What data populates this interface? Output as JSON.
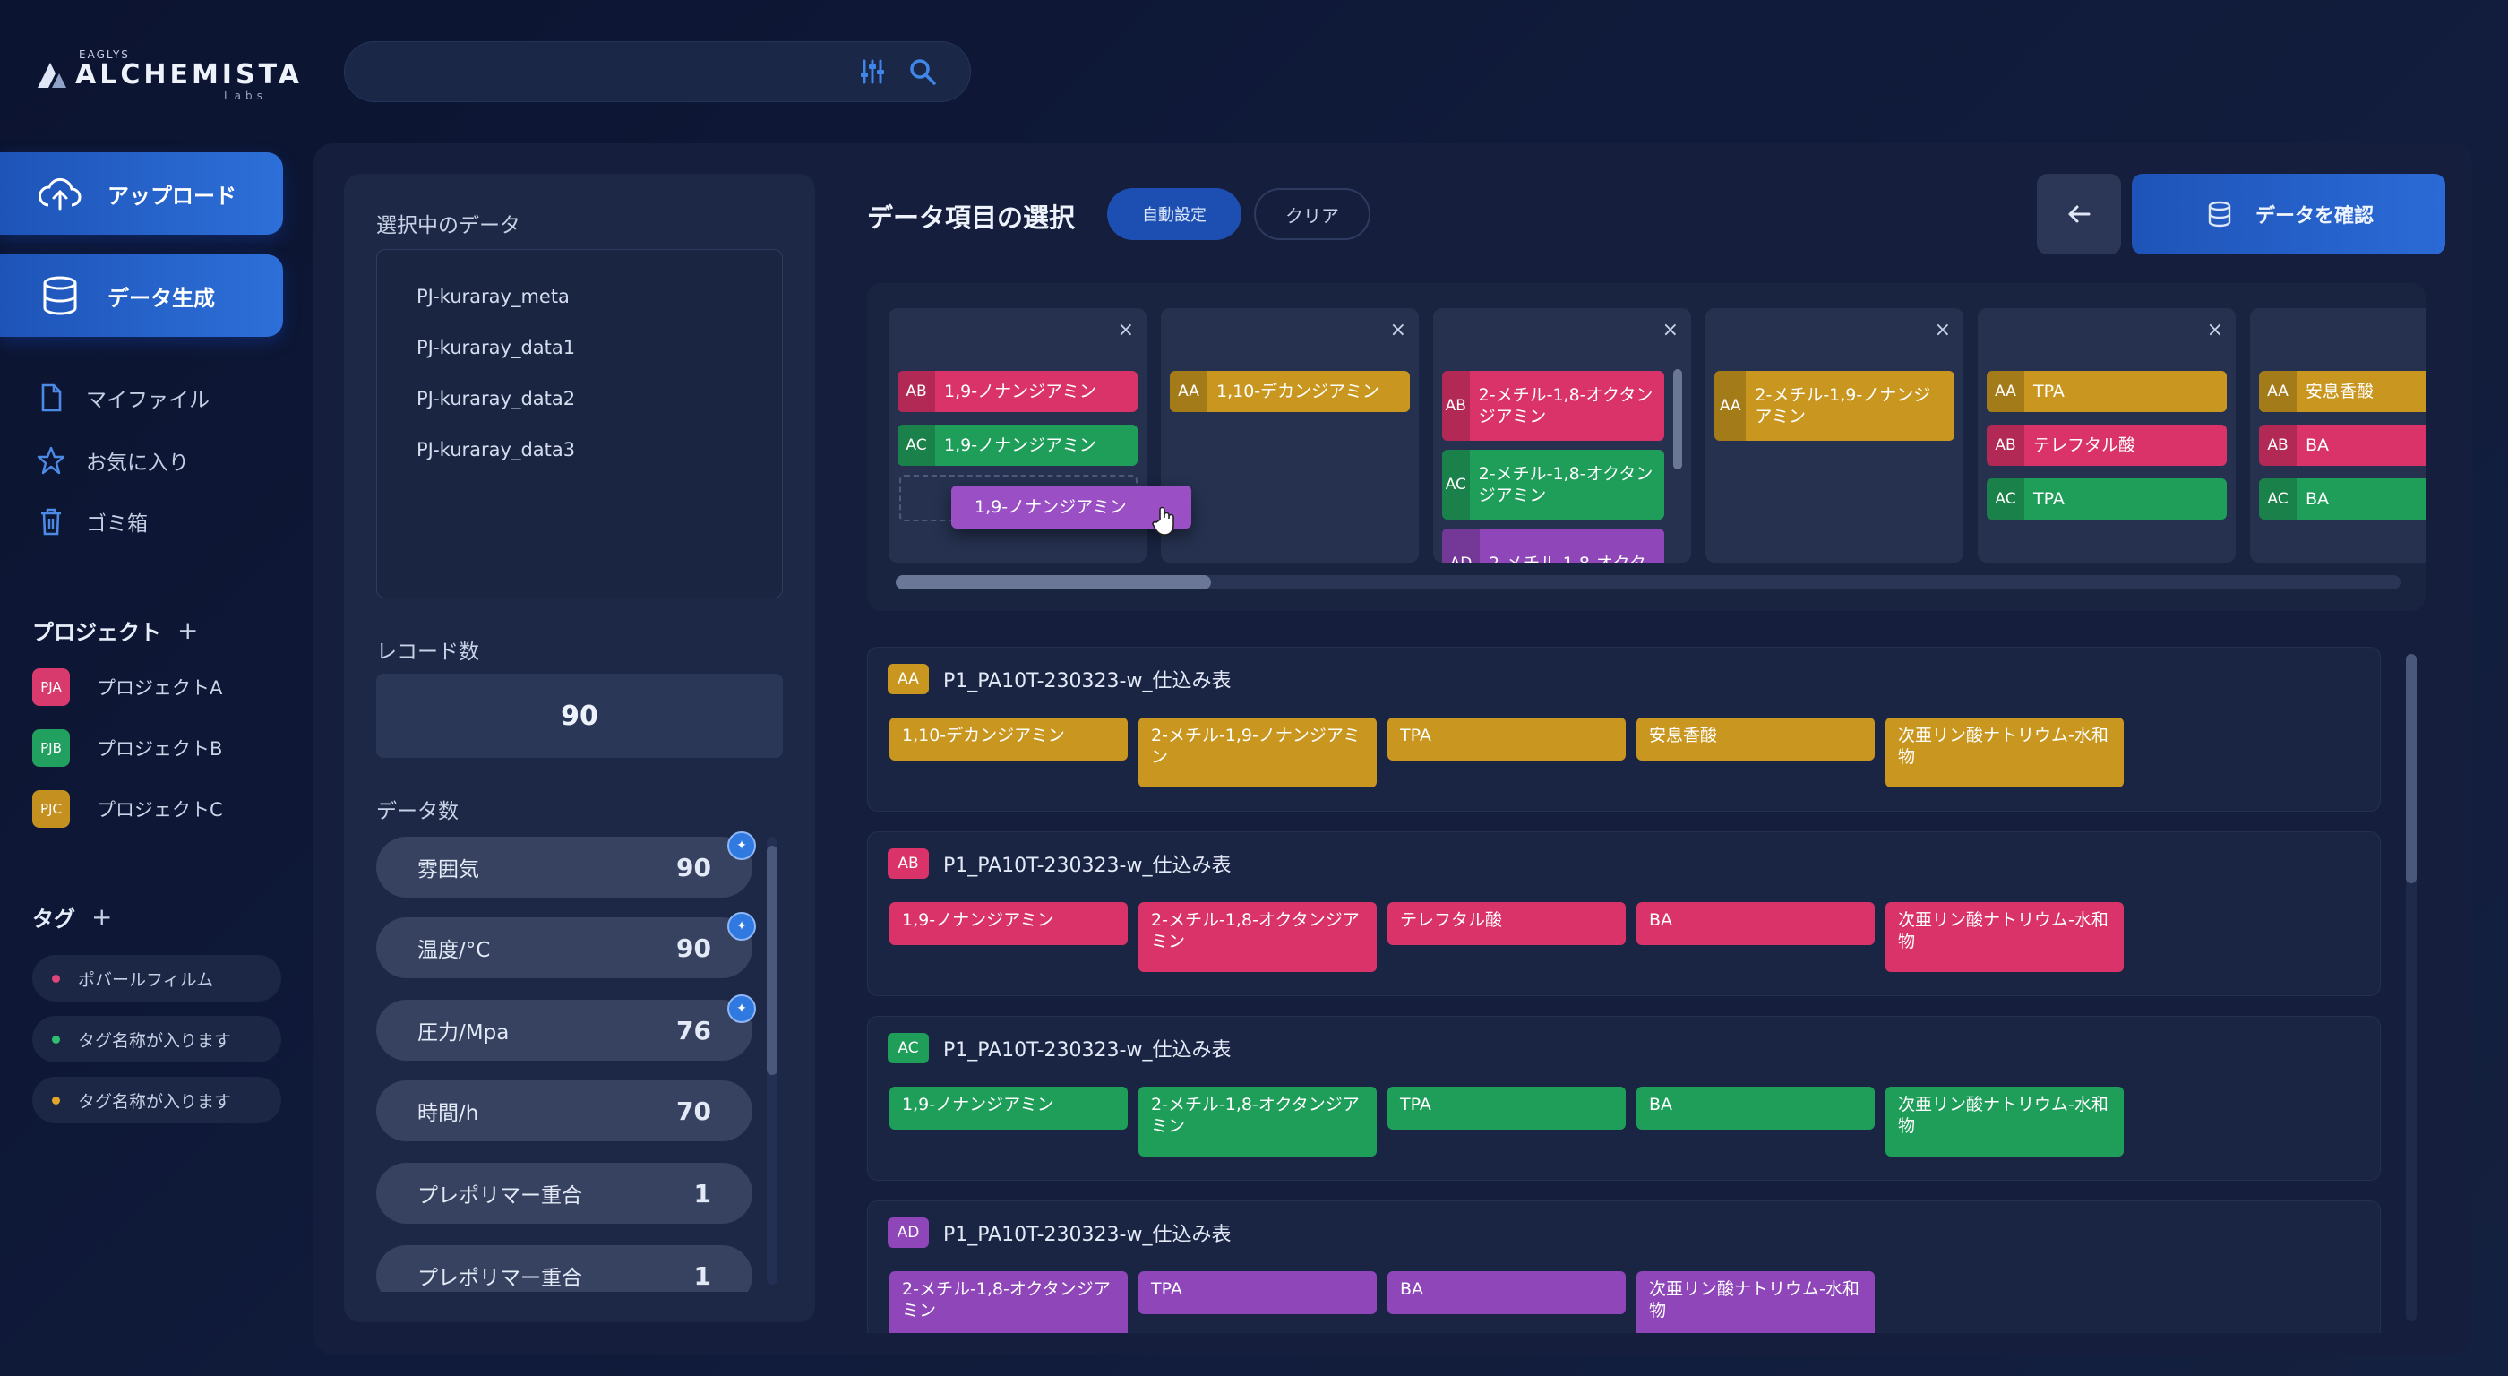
{
  "logo": {
    "tiny": "EAGLYS",
    "main": "ALCHEMISTA",
    "labs": "Labs"
  },
  "search": {
    "placeholder": "",
    "filter_icon": "sliders-icon",
    "search_icon": "search-icon"
  },
  "sidebar": {
    "upload": "アップロード",
    "data": "データ生成",
    "nav": [
      {
        "label": "マイファイル",
        "icon": "file-icon"
      },
      {
        "label": "お気に入り",
        "icon": "star-icon"
      },
      {
        "label": "ゴミ箱",
        "icon": "trash-icon"
      }
    ],
    "projects_title": "プロジェクト",
    "projects": [
      {
        "code": "PJA",
        "label": "プロジェクトA",
        "color": "#d83a6e"
      },
      {
        "code": "PJB",
        "label": "プロジェクトB",
        "color": "#22a060"
      },
      {
        "code": "PJC",
        "label": "プロジェクトC",
        "color": "#c49020"
      }
    ],
    "tags_title": "タグ",
    "tags": [
      {
        "label": "ポバールフィルム",
        "color": "#e0457a"
      },
      {
        "label": "タグ名称が入ります",
        "color": "#2fbf71"
      },
      {
        "label": "タグ名称が入ります",
        "color": "#e0a52a"
      }
    ]
  },
  "left": {
    "selected_title": "選択中のデータ",
    "selected": [
      "PJ-kuraray_meta",
      "PJ-kuraray_data1",
      "PJ-kuraray_data2",
      "PJ-kuraray_data3"
    ],
    "records_title": "レコード数",
    "records": "90",
    "counts_title": "データ数",
    "counts": [
      {
        "label": "雰囲気",
        "value": "90",
        "flag": true
      },
      {
        "label": "温度/°C",
        "value": "90",
        "flag": true
      },
      {
        "label": "圧力/Mpa",
        "value": "76",
        "flag": true
      },
      {
        "label": "時間/h",
        "value": "70",
        "flag": false
      },
      {
        "label": "プレポリマー重合",
        "value": "1",
        "flag": false
      },
      {
        "label": "プレポリマー重合",
        "value": "1",
        "flag": false
      }
    ]
  },
  "header": {
    "title": "データ項目の選択",
    "auto": "自動設定",
    "clear": "クリア",
    "confirm": "データを確認"
  },
  "colors": {
    "AA": "#c9971f",
    "AB": "#d9336a",
    "AC": "#1f9e5a",
    "AD": "#8e46b8"
  },
  "columns": [
    {
      "chips": [
        {
          "k": "AB",
          "t": "1,9-ノナンジアミン"
        },
        {
          "k": "AC",
          "t": "1,9-ノナンジアミン"
        }
      ],
      "drag": "1,9-ノナンジアミン"
    },
    {
      "chips": [
        {
          "k": "AA",
          "t": "1,10-デカンジアミン"
        }
      ]
    },
    {
      "chips": [
        {
          "k": "AB",
          "t": "2-メチル-1,8-オクタンジアミン",
          "tall": true
        },
        {
          "k": "AC",
          "t": "2-メチル-1,8-オクタンジアミン",
          "tall": true
        },
        {
          "k": "AD",
          "t": "2-メチル-1,8-オクタ",
          "tall": true
        }
      ]
    },
    {
      "chips": [
        {
          "k": "AA",
          "t": "2-メチル-1,9-ノナンジアミン",
          "tall": true
        }
      ]
    },
    {
      "chips": [
        {
          "k": "AA",
          "t": "TPA"
        },
        {
          "k": "AB",
          "t": "テレフタル酸"
        },
        {
          "k": "AC",
          "t": "TPA"
        }
      ]
    },
    {
      "chips": [
        {
          "k": "AA",
          "t": "安息香酸"
        },
        {
          "k": "AB",
          "t": "BA"
        },
        {
          "k": "AC",
          "t": "BA"
        }
      ]
    }
  ],
  "sources": [
    {
      "k": "AA",
      "name": "P1_PA10T-230323-w_仕込み表",
      "tokens": [
        "1,10-デカンジアミン",
        "2-メチル-1,9-ノナンジアミン",
        "TPA",
        "安息香酸",
        "次亜リン酸ナトリウム-水和物"
      ]
    },
    {
      "k": "AB",
      "name": "P1_PA10T-230323-w_仕込み表",
      "tokens": [
        "1,9-ノナンジアミン",
        "2-メチル-1,8-オクタンジアミン",
        "テレフタル酸",
        "BA",
        "次亜リン酸ナトリウム-水和物"
      ]
    },
    {
      "k": "AC",
      "name": "P1_PA10T-230323-w_仕込み表",
      "tokens": [
        "1,9-ノナンジアミン",
        "2-メチル-1,8-オクタンジアミン",
        "TPA",
        "BA",
        "次亜リン酸ナトリウム-水和物"
      ]
    },
    {
      "k": "AD",
      "name": "P1_PA10T-230323-w_仕込み表",
      "tokens": [
        "2-メチル-1,8-オクタンジアミン",
        "TPA",
        "BA",
        "次亜リン酸ナトリウム-水和物"
      ]
    }
  ]
}
